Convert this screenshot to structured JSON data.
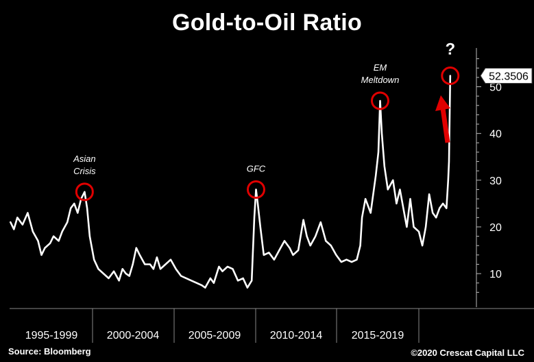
{
  "chart_data": {
    "type": "line",
    "title": "Gold-to-Oil Ratio",
    "ylim": [
      4,
      58
    ],
    "y_ticks": [
      10,
      20,
      30,
      40,
      50
    ],
    "x_periods": [
      "1995-1999",
      "2000-2004",
      "2005-2009",
      "2010-2014",
      "2015-2019"
    ],
    "last_value_label": "52.3506",
    "series": [
      {
        "values": [
          [
            1994.6,
            21
          ],
          [
            1994.8,
            19.5
          ],
          [
            1995.0,
            22
          ],
          [
            1995.3,
            20.5
          ],
          [
            1995.6,
            23
          ],
          [
            1995.9,
            19
          ],
          [
            1996.2,
            17
          ],
          [
            1996.4,
            14
          ],
          [
            1996.6,
            15.5
          ],
          [
            1996.9,
            16.5
          ],
          [
            1997.1,
            18
          ],
          [
            1997.4,
            17
          ],
          [
            1997.6,
            19
          ],
          [
            1997.9,
            21
          ],
          [
            1998.1,
            24
          ],
          [
            1998.3,
            25
          ],
          [
            1998.5,
            23
          ],
          [
            1998.7,
            26
          ],
          [
            1998.9,
            27.5
          ],
          [
            1999.05,
            24
          ],
          [
            1999.2,
            18
          ],
          [
            1999.45,
            13
          ],
          [
            1999.7,
            11
          ],
          [
            2000.0,
            10
          ],
          [
            2000.3,
            9
          ],
          [
            2000.6,
            10.5
          ],
          [
            2000.9,
            8.5
          ],
          [
            2001.1,
            11
          ],
          [
            2001.3,
            10
          ],
          [
            2001.5,
            9.5
          ],
          [
            2001.7,
            12
          ],
          [
            2001.9,
            15.5
          ],
          [
            2002.1,
            14
          ],
          [
            2002.4,
            12
          ],
          [
            2002.7,
            12
          ],
          [
            2002.9,
            11
          ],
          [
            2003.1,
            13.5
          ],
          [
            2003.3,
            11
          ],
          [
            2003.6,
            12
          ],
          [
            2003.9,
            13
          ],
          [
            2004.2,
            11
          ],
          [
            2004.5,
            9.5
          ],
          [
            2004.8,
            9
          ],
          [
            2005.1,
            8.5
          ],
          [
            2005.4,
            8
          ],
          [
            2005.7,
            7.5
          ],
          [
            2005.9,
            7
          ],
          [
            2006.2,
            9
          ],
          [
            2006.4,
            8
          ],
          [
            2006.7,
            11.5
          ],
          [
            2006.9,
            10.5
          ],
          [
            2007.2,
            11.5
          ],
          [
            2007.5,
            11
          ],
          [
            2007.8,
            8.5
          ],
          [
            2008.1,
            9
          ],
          [
            2008.35,
            7
          ],
          [
            2008.6,
            8.5
          ],
          [
            2008.75,
            22
          ],
          [
            2008.85,
            28
          ],
          [
            2008.95,
            25
          ],
          [
            2009.1,
            20
          ],
          [
            2009.3,
            14
          ],
          [
            2009.6,
            14.5
          ],
          [
            2009.9,
            13
          ],
          [
            2010.2,
            15
          ],
          [
            2010.5,
            17
          ],
          [
            2010.8,
            15.5
          ],
          [
            2011.0,
            14
          ],
          [
            2011.3,
            15
          ],
          [
            2011.6,
            21.5
          ],
          [
            2011.8,
            18
          ],
          [
            2012.0,
            16
          ],
          [
            2012.3,
            18
          ],
          [
            2012.6,
            21
          ],
          [
            2012.9,
            17
          ],
          [
            2013.2,
            16
          ],
          [
            2013.5,
            14
          ],
          [
            2013.8,
            12.5
          ],
          [
            2014.1,
            13
          ],
          [
            2014.4,
            12.5
          ],
          [
            2014.7,
            13
          ],
          [
            2014.9,
            16
          ],
          [
            2015.0,
            22
          ],
          [
            2015.2,
            26
          ],
          [
            2015.5,
            23
          ],
          [
            2015.8,
            31
          ],
          [
            2015.95,
            36
          ],
          [
            2016.05,
            47
          ],
          [
            2016.15,
            40
          ],
          [
            2016.3,
            33
          ],
          [
            2016.5,
            28
          ],
          [
            2016.8,
            30
          ],
          [
            2017.0,
            25
          ],
          [
            2017.2,
            28
          ],
          [
            2017.4,
            24
          ],
          [
            2017.6,
            20
          ],
          [
            2017.8,
            26
          ],
          [
            2018.0,
            20
          ],
          [
            2018.3,
            19
          ],
          [
            2018.5,
            16
          ],
          [
            2018.7,
            20
          ],
          [
            2018.9,
            27
          ],
          [
            2019.1,
            23
          ],
          [
            2019.3,
            22
          ],
          [
            2019.5,
            24
          ],
          [
            2019.7,
            25
          ],
          [
            2019.9,
            24
          ],
          [
            2020.0,
            30
          ],
          [
            2020.05,
            34
          ],
          [
            2020.1,
            47
          ],
          [
            2020.12,
            52.35
          ]
        ]
      }
    ],
    "annotations": [
      {
        "text": [
          "Asian",
          "Crisis"
        ],
        "x": 1998.9,
        "y": 27.5
      },
      {
        "text": [
          "GFC"
        ],
        "x": 2008.85,
        "y": 28
      },
      {
        "text": [
          "EM",
          "Meltdown"
        ],
        "x": 2016.05,
        "y": 47
      },
      {
        "text": [
          "?"
        ],
        "x": 2020.12,
        "y": 52.35
      }
    ]
  },
  "footer": {
    "source": "Source: Bloomberg",
    "copyright": "©2020 Crescat Capital LLC"
  },
  "colors": {
    "background": "#000000",
    "line": "#ffffff",
    "circle": "#e00000",
    "arrow": "#e00000"
  }
}
